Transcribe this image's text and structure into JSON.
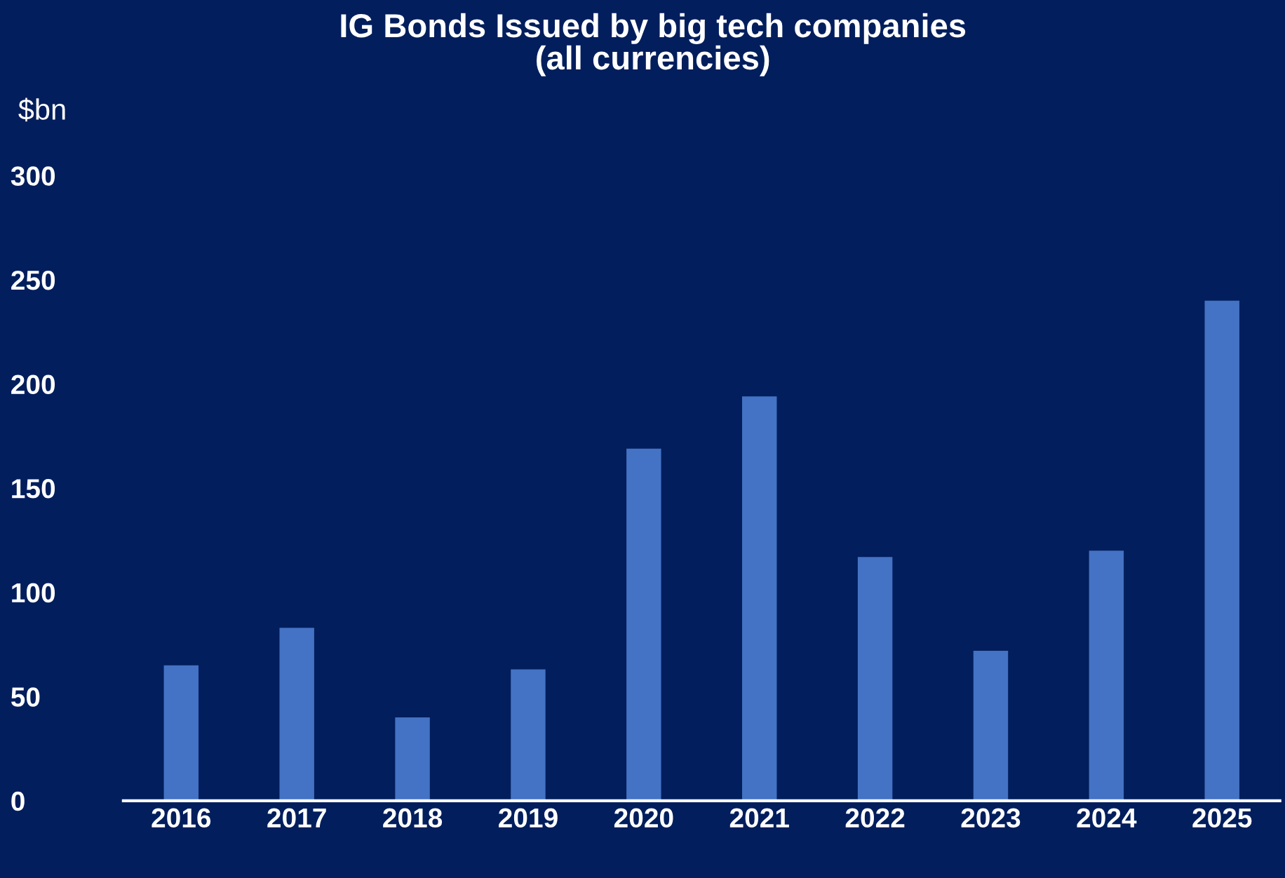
{
  "chart_data": {
    "type": "bar",
    "title": "IG Bonds Issued by big tech companies\n(all currencies)",
    "ylabel": "$bn",
    "categories": [
      "2016",
      "2017",
      "2018",
      "2019",
      "2020",
      "2021",
      "2022",
      "2023",
      "2024",
      "2025"
    ],
    "values": [
      65,
      83,
      40,
      63,
      169,
      194,
      117,
      72,
      120,
      240
    ],
    "color": "#4472c4",
    "ylim": [
      0,
      300
    ],
    "yticks": [
      0,
      50,
      100,
      150,
      200,
      250,
      300
    ],
    "grid": false,
    "legend": false
  }
}
